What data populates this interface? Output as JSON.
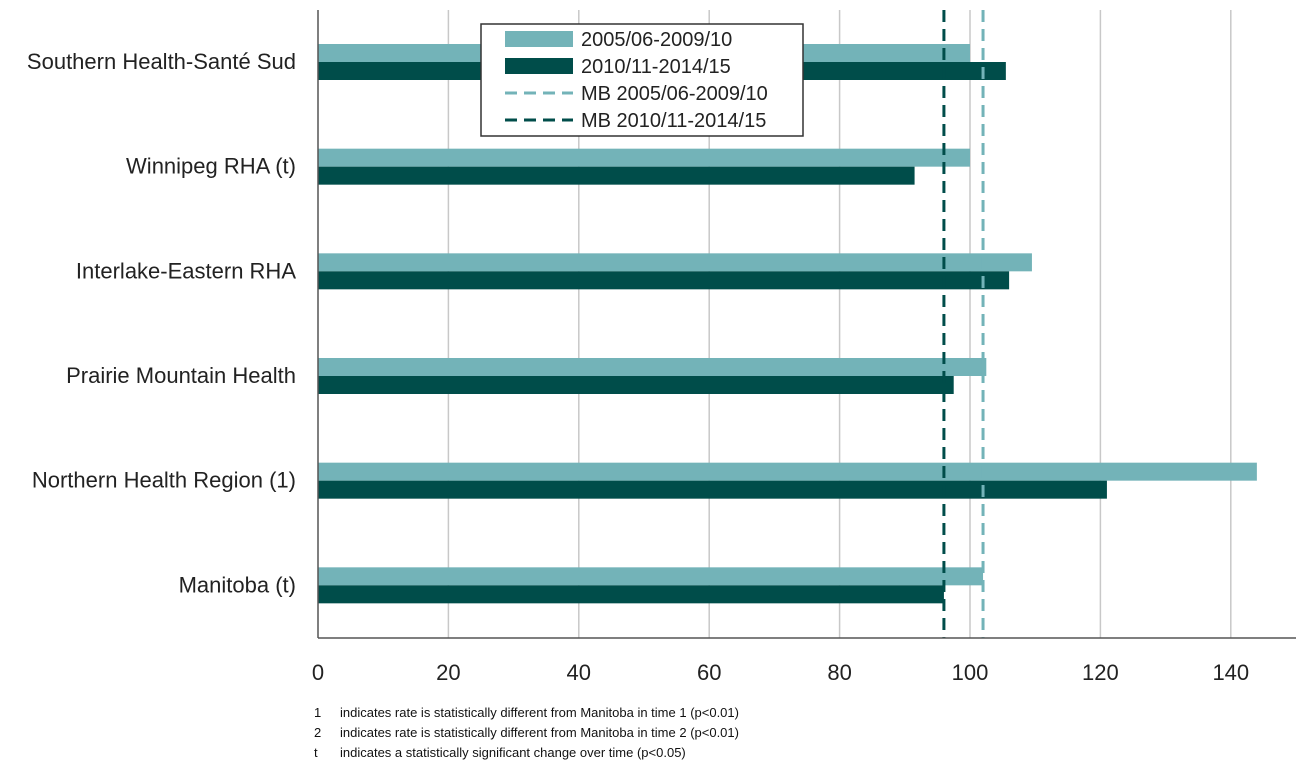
{
  "chart_data": {
    "type": "bar",
    "orientation": "horizontal",
    "categories": [
      "Southern Health-Santé Sud",
      "Winnipeg RHA (t)",
      "Interlake-Eastern RHA",
      "Prairie Mountain Health",
      "Northern Health Region (1)",
      "Manitoba (t)"
    ],
    "series": [
      {
        "name": "2005/06-2009/10",
        "color": "#73b3b8",
        "values": [
          100,
          100,
          109.5,
          102.5,
          144,
          102
        ]
      },
      {
        "name": "2010/11-2014/15",
        "color": "#004d4a",
        "values": [
          105.5,
          91.5,
          106,
          97.5,
          121,
          96
        ]
      }
    ],
    "reference_lines": [
      {
        "name": "MB 2005/06-2009/10",
        "value": 102,
        "color": "#73b3b8",
        "style": "dashed"
      },
      {
        "name": "MB 2010/11-2014/15",
        "value": 96,
        "color": "#004d4a",
        "style": "dashed"
      }
    ],
    "xlim": [
      0,
      150
    ],
    "xticks": [
      0,
      20,
      40,
      60,
      80,
      100,
      120,
      140
    ],
    "grid": "vertical",
    "legend_position": "top-center"
  },
  "footnotes": [
    {
      "key": "1",
      "text": "indicates rate is statistically different from Manitoba in time 1 (p<0.01)"
    },
    {
      "key": "2",
      "text": "indicates rate is statistically different from Manitoba in time 2 (p<0.01)"
    },
    {
      "key": "t",
      "text": "indicates a statistically significant change over time (p<0.05)"
    }
  ]
}
